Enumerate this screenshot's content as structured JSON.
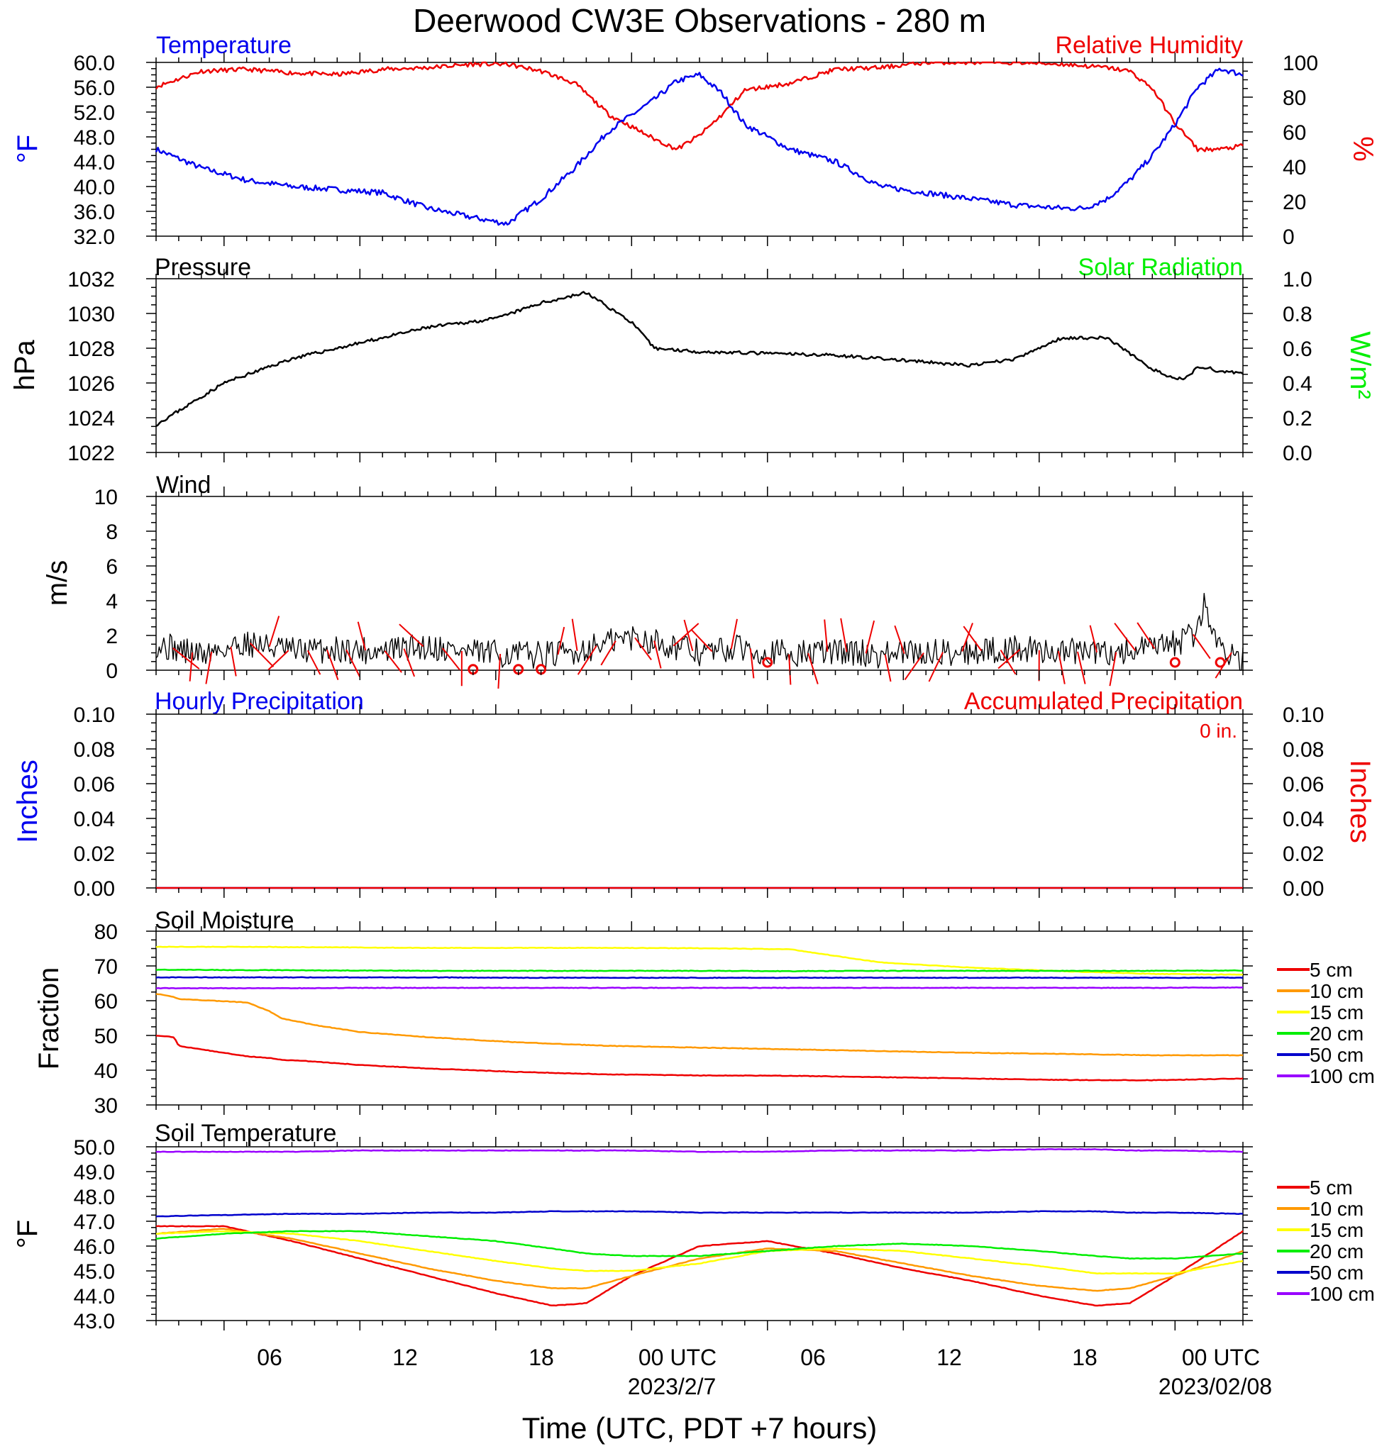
{
  "title": "Deerwood CW3E Observations - 280 m",
  "x_axis": {
    "label": "Time (UTC, PDT +7 hours)",
    "ticks": [
      "06",
      "12",
      "18",
      "00 UTC",
      "06",
      "12",
      "18",
      "00 UTC"
    ],
    "dates": [
      "2023/2/7",
      "2023/02/08"
    ]
  },
  "colors": {
    "temperature": "#0000ee",
    "humidity": "#ee0000",
    "pressure": "#000000",
    "solar": "#00ee00",
    "wind_barb": "#ee0000",
    "depth_5cm": "#ee0000",
    "depth_10cm": "#ff9900",
    "depth_15cm": "#ffff00",
    "depth_20cm": "#00ee00",
    "depth_50cm": "#0000cc",
    "depth_100cm": "#9900ff"
  },
  "chart_data": [
    {
      "id": "temp_rh",
      "type": "line",
      "title_left": "Temperature",
      "title_right": "Relative Humidity",
      "ylabel_left": "°F",
      "ylabel_right": "%",
      "ylim_left": [
        32,
        60
      ],
      "ylim_right": [
        0,
        100
      ],
      "yticks_left": [
        "60.0",
        "56.0",
        "52.0",
        "48.0",
        "44.0",
        "40.0",
        "36.0",
        "32.0"
      ],
      "yticks_right": [
        "100",
        "80",
        "60",
        "40",
        "20",
        "0"
      ],
      "x_hours": [
        0,
        2,
        4,
        6,
        8,
        10,
        12,
        14,
        15.5,
        17,
        18.5,
        20,
        22,
        23,
        24,
        25,
        26,
        28,
        30,
        32,
        34,
        36,
        38,
        40,
        41,
        42,
        43,
        44,
        45,
        46,
        47,
        48
      ],
      "series": [
        {
          "name": "Temperature",
          "axis": "left",
          "values": [
            46,
            43,
            41,
            40,
            39.5,
            39,
            36.5,
            35,
            34,
            38,
            43,
            49,
            54,
            57,
            58,
            55,
            50,
            46,
            44,
            40,
            39,
            38,
            37,
            36.5,
            36.5,
            38,
            41,
            45,
            50,
            56,
            59,
            58
          ]
        },
        {
          "name": "Relative Humidity",
          "axis": "right",
          "values": [
            86,
            95,
            96,
            94,
            93,
            96,
            97,
            99,
            99,
            95,
            88,
            70,
            56,
            50,
            58,
            70,
            84,
            88,
            96,
            97,
            100,
            100,
            100,
            99,
            98,
            97,
            95,
            85,
            65,
            50,
            50,
            52
          ]
        }
      ]
    },
    {
      "id": "pressure",
      "type": "line",
      "title_left": "Pressure",
      "title_right": "Solar Radiation",
      "ylabel_left": "hPa",
      "ylabel_right": "W/m²",
      "ylim_left": [
        1022,
        1032
      ],
      "ylim_right": [
        0,
        1
      ],
      "yticks_left": [
        "1032",
        "1030",
        "1028",
        "1026",
        "1024",
        "1022"
      ],
      "yticks_right": [
        "1.0",
        "0.8",
        "0.6",
        "0.4",
        "0.2",
        "0.0"
      ],
      "x_hours": [
        0,
        3,
        6,
        9,
        12,
        15,
        17,
        19,
        21,
        22,
        24,
        27,
        30,
        33,
        36,
        38,
        40,
        42,
        44,
        45,
        45.5,
        46,
        46.5,
        47,
        48
      ],
      "series": [
        {
          "name": "Pressure",
          "axis": "left",
          "values": [
            1023.6,
            1026,
            1027.4,
            1028.3,
            1029.2,
            1029.7,
            1030.6,
            1031.2,
            1029.5,
            1028,
            1027.8,
            1027.7,
            1027.6,
            1027.3,
            1027,
            1027.4,
            1028.6,
            1028.6,
            1026.8,
            1026.2,
            1026.3,
            1026.9,
            1026.9,
            1026.6,
            1026.6
          ]
        }
      ]
    },
    {
      "id": "wind",
      "type": "line",
      "title_left": "Wind",
      "ylabel_left": "m/s",
      "ylim_left": [
        0,
        10
      ],
      "yticks_left": [
        "10",
        "8",
        "6",
        "4",
        "2",
        "0"
      ],
      "x_hours": [
        0,
        2,
        4,
        6,
        8,
        10,
        12,
        14,
        16,
        18,
        20,
        21,
        22,
        24,
        26,
        28,
        30,
        32,
        34,
        36,
        38,
        40,
        42,
        44,
        44.5,
        45,
        46,
        46.3,
        46.8,
        48
      ],
      "series": [
        {
          "name": "Wind Speed",
          "axis": "left",
          "values": [
            1.5,
            0.9,
            1.6,
            1.1,
            1.2,
            1.1,
            1.4,
            1.0,
            0.9,
            0.9,
            1.6,
            1.9,
            1.7,
            1.0,
            1.3,
            0.9,
            1.1,
            0.9,
            1.0,
            1.1,
            1.2,
            1.1,
            1.0,
            1.2,
            1.4,
            1.5,
            2.2,
            4.0,
            1.6,
            0.6
          ]
        }
      ],
      "calm_markers_hours": [
        14,
        16,
        17,
        27,
        45,
        47
      ]
    },
    {
      "id": "precip",
      "type": "line",
      "title_left": "Hourly Precipitation",
      "title_right": "Accumulated Precipitation",
      "total_label": "0 in.",
      "ylabel_left": "Inches",
      "ylabel_right": "Inches",
      "ylim_left": [
        0,
        0.1
      ],
      "ylim_right": [
        0,
        0.1
      ],
      "yticks_left": [
        "0.10",
        "0.08",
        "0.06",
        "0.04",
        "0.02",
        "0.00"
      ],
      "yticks_right": [
        "0.10",
        "0.08",
        "0.06",
        "0.04",
        "0.02",
        "0.00"
      ],
      "x_hours": [
        0,
        48
      ],
      "series": [
        {
          "name": "Hourly Precipitation",
          "axis": "left",
          "values": [
            0,
            0
          ]
        },
        {
          "name": "Accumulated Precipitation",
          "axis": "right",
          "values": [
            0,
            0
          ]
        }
      ]
    },
    {
      "id": "soil_moisture",
      "type": "line",
      "title_left": "Soil Moisture",
      "ylabel_left": "Fraction",
      "ylim_left": [
        30,
        80
      ],
      "yticks_left": [
        "80",
        "70",
        "60",
        "50",
        "40",
        "30"
      ],
      "legend": [
        "5 cm",
        "10 cm",
        "15 cm",
        "20 cm",
        "50 cm",
        "100 cm"
      ],
      "x_hours": [
        0,
        0.8,
        1,
        4,
        5,
        5.5,
        7,
        9,
        12,
        16,
        20,
        24,
        28,
        32,
        36,
        40,
        44,
        48
      ],
      "series": [
        {
          "name": "5 cm",
          "values": [
            50,
            49.5,
            47,
            44,
            43.5,
            43,
            42.5,
            41.5,
            40.5,
            39.5,
            38.8,
            38.5,
            38.4,
            38,
            37.6,
            37.2,
            37.1,
            37.6
          ]
        },
        {
          "name": "10 cm",
          "values": [
            62,
            61,
            60.5,
            59.5,
            57,
            55,
            53,
            51,
            49.5,
            48,
            47,
            46.5,
            46,
            45.5,
            45,
            44.7,
            44.3,
            44.3
          ]
        },
        {
          "name": "15 cm",
          "values": [
            75.5,
            75.5,
            75.5,
            75.5,
            75.5,
            75.4,
            75.4,
            75.3,
            75.2,
            75.2,
            75.2,
            75.1,
            74.8,
            71,
            69.5,
            68.5,
            67.7,
            67.5
          ]
        },
        {
          "name": "20 cm",
          "values": [
            68.9,
            68.9,
            68.9,
            68.8,
            68.8,
            68.8,
            68.7,
            68.7,
            68.6,
            68.6,
            68.6,
            68.6,
            68.5,
            68.6,
            68.6,
            68.6,
            68.6,
            68.7
          ]
        },
        {
          "name": "50 cm",
          "values": [
            66.7,
            66.7,
            66.7,
            66.7,
            66.7,
            66.7,
            66.7,
            66.7,
            66.7,
            66.6,
            66.6,
            66.6,
            66.6,
            66.6,
            66.6,
            66.6,
            66.6,
            66.6
          ]
        },
        {
          "name": "100 cm",
          "values": [
            63.6,
            63.6,
            63.6,
            63.6,
            63.6,
            63.6,
            63.6,
            63.7,
            63.7,
            63.7,
            63.7,
            63.7,
            63.7,
            63.7,
            63.7,
            63.7,
            63.7,
            63.8
          ]
        }
      ]
    },
    {
      "id": "soil_temperature",
      "type": "line",
      "title_left": "Soil Temperature",
      "ylabel_left": "°F",
      "ylim_left": [
        43,
        50
      ],
      "yticks_left": [
        "50.0",
        "49.0",
        "48.0",
        "47.0",
        "46.0",
        "45.0",
        "44.0",
        "43.0"
      ],
      "legend": [
        "5 cm",
        "10 cm",
        "15 cm",
        "20 cm",
        "50 cm",
        "100 cm"
      ],
      "x_hours": [
        0,
        3,
        6,
        9,
        12,
        15,
        17.5,
        19,
        21,
        24,
        27,
        30,
        33,
        36,
        39,
        41.5,
        43,
        45,
        48
      ],
      "series": [
        {
          "name": "5 cm",
          "values": [
            46.8,
            46.8,
            46.2,
            45.5,
            44.8,
            44.1,
            43.6,
            43.7,
            44.8,
            46.0,
            46.2,
            45.7,
            45.1,
            44.6,
            44.0,
            43.6,
            43.7,
            44.8,
            46.6
          ]
        },
        {
          "name": "10 cm",
          "values": [
            46.5,
            46.7,
            46.3,
            45.7,
            45.1,
            44.6,
            44.3,
            44.3,
            44.8,
            45.5,
            45.9,
            45.8,
            45.3,
            44.8,
            44.4,
            44.2,
            44.3,
            44.8,
            45.8
          ]
        },
        {
          "name": "15 cm",
          "values": [
            46.5,
            46.6,
            46.5,
            46.2,
            45.8,
            45.4,
            45.1,
            45.0,
            45.0,
            45.3,
            45.8,
            45.9,
            45.8,
            45.5,
            45.2,
            44.9,
            44.9,
            44.9,
            45.4
          ]
        },
        {
          "name": "20 cm",
          "values": [
            46.3,
            46.5,
            46.6,
            46.6,
            46.4,
            46.2,
            45.9,
            45.7,
            45.6,
            45.6,
            45.8,
            46.0,
            46.1,
            46.0,
            45.8,
            45.6,
            45.5,
            45.5,
            45.7
          ]
        },
        {
          "name": "50 cm",
          "values": [
            47.2,
            47.25,
            47.3,
            47.3,
            47.35,
            47.35,
            47.4,
            47.4,
            47.4,
            47.35,
            47.35,
            47.35,
            47.35,
            47.35,
            47.4,
            47.4,
            47.35,
            47.35,
            47.3
          ]
        },
        {
          "name": "100 cm",
          "values": [
            49.8,
            49.8,
            49.8,
            49.85,
            49.85,
            49.85,
            49.85,
            49.85,
            49.85,
            49.8,
            49.8,
            49.85,
            49.85,
            49.85,
            49.9,
            49.9,
            49.85,
            49.85,
            49.8
          ]
        }
      ]
    }
  ]
}
